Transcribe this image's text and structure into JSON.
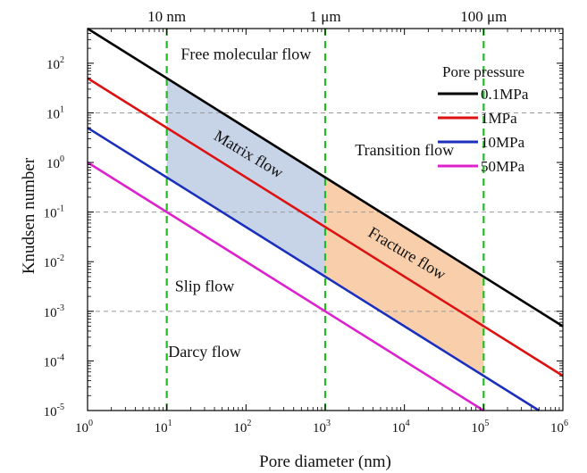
{
  "chart_data": {
    "type": "line",
    "xlabel": "Pore diameter (nm)",
    "ylabel": "Knudsen number",
    "x_scale": "log",
    "y_scale": "log",
    "xlim": [
      1,
      1000000
    ],
    "ylim": [
      1e-05,
      500
    ],
    "x_ticks": [
      {
        "base": "10",
        "exp": "0",
        "value": 1
      },
      {
        "base": "10",
        "exp": "1",
        "value": 10
      },
      {
        "base": "10",
        "exp": "2",
        "value": 100
      },
      {
        "base": "10",
        "exp": "3",
        "value": 1000
      },
      {
        "base": "10",
        "exp": "4",
        "value": 10000
      },
      {
        "base": "10",
        "exp": "5",
        "value": 100000
      },
      {
        "base": "10",
        "exp": "6",
        "value": 1000000
      }
    ],
    "y_ticks": [
      {
        "base": "10",
        "exp": "-5",
        "value": 1e-05
      },
      {
        "base": "10",
        "exp": "-4",
        "value": 0.0001
      },
      {
        "base": "10",
        "exp": "-3",
        "value": 0.001
      },
      {
        "base": "10",
        "exp": "-2",
        "value": 0.01
      },
      {
        "base": "10",
        "exp": "-1",
        "value": 0.1
      },
      {
        "base": "10",
        "exp": "0",
        "value": 1
      },
      {
        "base": "10",
        "exp": "1",
        "value": 10
      },
      {
        "base": "10",
        "exp": "2",
        "value": 100
      }
    ],
    "top_markers": [
      {
        "label": "10 nm",
        "x": 10
      },
      {
        "label": "1 μm",
        "x": 1000
      },
      {
        "label": "100 μm",
        "x": 100000
      }
    ],
    "vertical_lines": [
      {
        "x": 10,
        "color": "#22bb22",
        "style": "dashed"
      },
      {
        "x": 1000,
        "color": "#22bb22",
        "style": "dashed"
      },
      {
        "x": 100000,
        "color": "#22bb22",
        "style": "dashed"
      }
    ],
    "horizontal_lines": [
      {
        "y": 10,
        "color": "#999999",
        "style": "dashed"
      },
      {
        "y": 0.1,
        "color": "#999999",
        "style": "dashed"
      },
      {
        "y": 0.001,
        "color": "#999999",
        "style": "dashed"
      }
    ],
    "legend": {
      "title": "Pore pressure",
      "position": "top-right"
    },
    "series": [
      {
        "name": "0.1MPa",
        "color": "#000000",
        "points": [
          [
            1,
            500
          ],
          [
            1000000,
            0.0005
          ]
        ]
      },
      {
        "name": "1MPa",
        "color": "#dd1111",
        "points": [
          [
            1,
            50
          ],
          [
            1000000,
            5e-05
          ]
        ]
      },
      {
        "name": "10MPa",
        "color": "#1a2fbb",
        "points": [
          [
            1,
            5
          ],
          [
            500000,
            1e-05
          ]
        ]
      },
      {
        "name": "50MPa",
        "color": "#dd22cc",
        "points": [
          [
            1,
            1
          ],
          [
            100000,
            1e-05
          ]
        ]
      }
    ],
    "regions": [
      {
        "label": "Matrix flow",
        "color": "#c7d3e6",
        "polygon": [
          [
            10,
            50
          ],
          [
            1000,
            0.5
          ],
          [
            1000,
            0.005
          ],
          [
            10,
            0.5
          ]
        ]
      },
      {
        "label": "Fracture flow",
        "color": "#f8ceab",
        "polygon": [
          [
            1000,
            0.5
          ],
          [
            100000,
            0.005
          ],
          [
            100000,
            5e-05
          ],
          [
            1000,
            0.005
          ]
        ]
      }
    ],
    "annotations": [
      {
        "text": "Free molecular flow",
        "x": 100,
        "y": 120
      },
      {
        "text": "Transition flow",
        "x": 10000,
        "y": 1.4
      },
      {
        "text": "Matrix flow",
        "x": 100,
        "y": 1.2,
        "rotate": 31
      },
      {
        "text": "Fracture flow",
        "x": 10000,
        "y": 0.012,
        "rotate": 31
      },
      {
        "text": "Slip flow",
        "x": 30,
        "y": 0.0025
      },
      {
        "text": "Darcy flow",
        "x": 30,
        "y": 0.00012
      }
    ]
  }
}
